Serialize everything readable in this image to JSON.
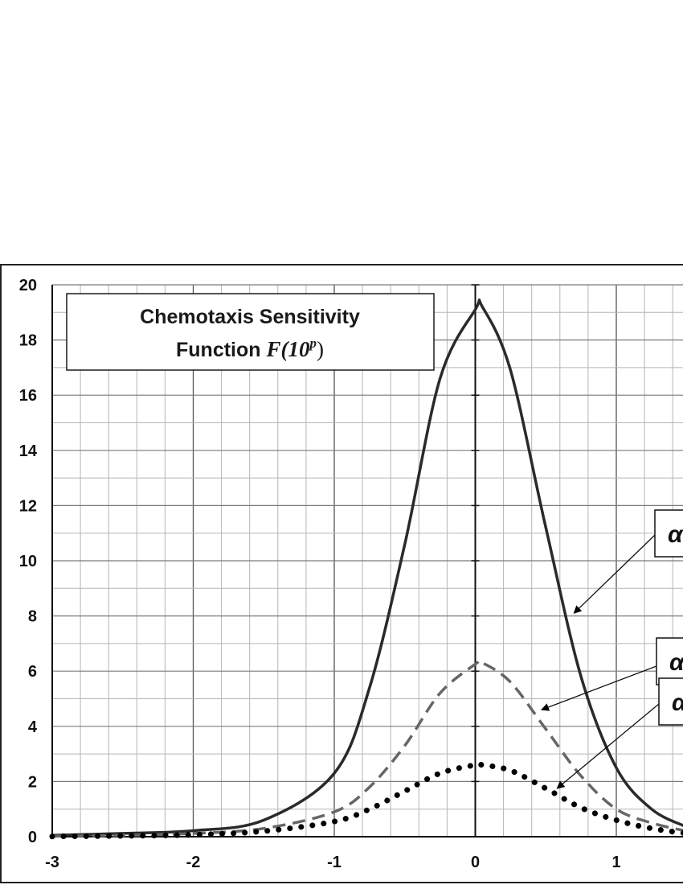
{
  "chart_data": {
    "type": "line",
    "title_line1": "Chemotaxis Sensitivity",
    "title_line2_prefix": "Function ",
    "title_line2_math": "F(10",
    "title_line2_sup": "p",
    "title_line2_close": ")",
    "xlabel": "",
    "ylabel": "",
    "xlim": [
      -3,
      1.5
    ],
    "ylim": [
      0,
      20
    ],
    "x_ticks": [
      -3,
      -2,
      -1,
      0,
      1
    ],
    "y_ticks": [
      0,
      2,
      4,
      6,
      8,
      10,
      12,
      14,
      16,
      18,
      20
    ],
    "grid": true,
    "series": [
      {
        "style": "solid",
        "label": "α",
        "x": [
          -3,
          -2.5,
          -2,
          -1.5,
          -1,
          -0.75,
          -0.5,
          -0.25,
          0,
          0.05,
          0.25,
          0.5,
          0.75,
          1,
          1.25,
          1.5
        ],
        "y": [
          0.05,
          0.12,
          0.22,
          0.6,
          2.3,
          5.4,
          10.6,
          16.6,
          19.1,
          19.2,
          16.9,
          11.2,
          5.8,
          2.5,
          1.0,
          0.35
        ]
      },
      {
        "style": "dashed",
        "label": "α",
        "x": [
          -3,
          -2.5,
          -2,
          -1.5,
          -1,
          -0.75,
          -0.5,
          -0.25,
          0,
          0.05,
          0.25,
          0.5,
          0.75,
          1,
          1.25,
          1.5
        ],
        "y": [
          0.02,
          0.05,
          0.12,
          0.3,
          0.9,
          1.8,
          3.3,
          5.2,
          6.25,
          6.3,
          5.6,
          3.9,
          2.2,
          1.0,
          0.5,
          0.2
        ]
      },
      {
        "style": "dotted",
        "label": "α",
        "x": [
          -3,
          -2.5,
          -2,
          -1.5,
          -1,
          -0.75,
          -0.5,
          -0.25,
          0,
          0.05,
          0.25,
          0.5,
          0.75,
          1,
          1.25,
          1.5
        ],
        "y": [
          0.01,
          0.03,
          0.07,
          0.2,
          0.55,
          1.0,
          1.65,
          2.3,
          2.6,
          2.6,
          2.4,
          1.75,
          1.05,
          0.6,
          0.3,
          0.12
        ]
      }
    ],
    "annotations": [
      {
        "text": "α",
        "target": [
          0.7,
          8.1
        ]
      },
      {
        "text": "α",
        "target": [
          0.47,
          4.6
        ]
      },
      {
        "text": "α",
        "target": [
          0.58,
          1.75
        ]
      }
    ]
  }
}
